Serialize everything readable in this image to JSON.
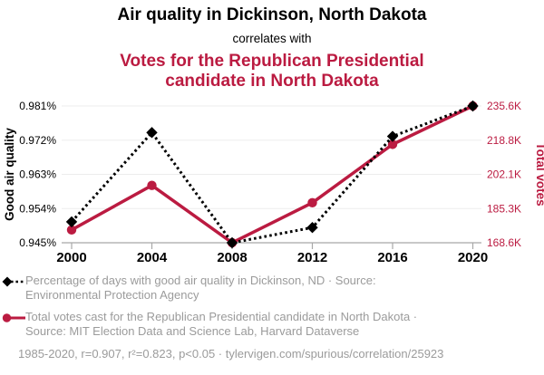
{
  "header": {
    "title": "Air quality in Dickinson, North Dakota",
    "connector": "correlates with",
    "subtitle": "Votes for the Republican Presidential candidate in North Dakota"
  },
  "colors": {
    "accent_red": "#bb1b41",
    "series_black": "#000000",
    "grid": "#ededed",
    "axis": "#a8a8a8",
    "muted_text": "#9b9b9b"
  },
  "chart_data": {
    "type": "line",
    "x": [
      2000,
      2004,
      2008,
      2012,
      2016,
      2020
    ],
    "x_tick_labels": [
      "2000",
      "2004",
      "2008",
      "2012",
      "2016",
      "2020"
    ],
    "grid": "horizontal",
    "legend_position": "bottom",
    "left_axis": {
      "label": "Good air quality",
      "min": 0.945,
      "max": 0.981,
      "tick_labels": [
        "0.945%",
        "0.954%",
        "0.963%",
        "0.972%",
        "0.981%"
      ]
    },
    "right_axis": {
      "label": "Total votes",
      "min": 168.6,
      "max": 235.6,
      "tick_labels": [
        "168.6K",
        "185.3K",
        "202.1K",
        "218.8K",
        "235.6K"
      ]
    },
    "series": [
      {
        "name": "Percentage of days with good air quality in Dickinson, ND",
        "axis": "left",
        "color": "#000000",
        "style": "dotted",
        "marker": "diamond",
        "values": [
          0.9505,
          0.974,
          0.945,
          0.949,
          0.973,
          0.981
        ]
      },
      {
        "name": "Total votes cast for the Republican Presidential candidate in North Dakota",
        "axis": "right",
        "color": "#bb1b41",
        "style": "solid",
        "marker": "circle",
        "values": [
          174.9,
          196.7,
          168.6,
          188.2,
          216.8,
          235.6
        ]
      }
    ]
  },
  "legend": {
    "items": [
      {
        "line1": "Percentage of days with good air quality in Dickinson, ND · Source:",
        "line2": "Environmental Protection Agency"
      },
      {
        "line1": "Total votes cast for the Republican Presidential candidate in North Dakota ·",
        "line2": "Source: MIT Election Data and Science Lab, Harvard Dataverse"
      }
    ]
  },
  "footer": {
    "text": "1985-2020, r=0.907, r²=0.823, p<0.05 · tylervigen.com/spurious/correlation/25923"
  }
}
